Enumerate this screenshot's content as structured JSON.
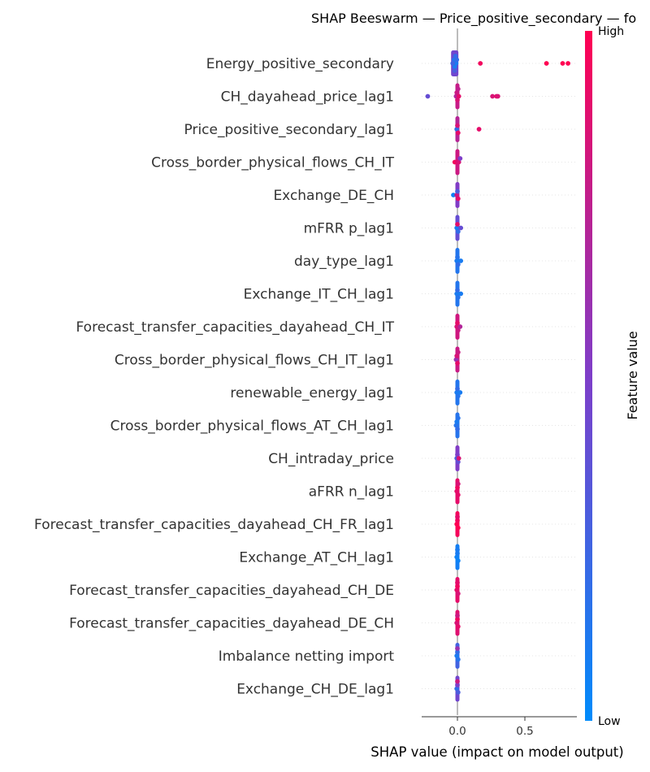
{
  "chart_data": {
    "type": "scatter",
    "title": "SHAP Beeswarm — Price_positive_secondary — fo",
    "xlabel": "SHAP value (impact on model output)",
    "xticks": [
      0.0,
      0.5
    ],
    "xtick_labels": [
      "0.0",
      "0.5"
    ],
    "xlim": [
      -0.27,
      0.88
    ],
    "colorbar": {
      "label": "Feature value",
      "high": "High",
      "low": "Low",
      "low_color": "#008bfb",
      "high_color": "#ff0052"
    },
    "features": [
      {
        "name": "Energy_positive_secondary",
        "points": [
          {
            "x": -0.03,
            "c": 0.1
          },
          {
            "x": -0.025,
            "c": 0.15
          },
          {
            "x": -0.02,
            "c": 0.1
          },
          {
            "x": -0.015,
            "c": 0.2
          },
          {
            "x": -0.01,
            "c": 0.1
          },
          {
            "x": -0.035,
            "c": 0.25
          },
          {
            "x": -0.02,
            "c": 0.3
          },
          {
            "x": -0.005,
            "c": 0.2
          },
          {
            "x": 0.17,
            "c": 0.95
          },
          {
            "x": 0.66,
            "c": 1.0
          },
          {
            "x": 0.78,
            "c": 1.0
          },
          {
            "x": 0.82,
            "c": 1.0
          }
        ]
      },
      {
        "name": "CH_dayahead_price_lag1",
        "points": [
          {
            "x": -0.22,
            "c": 0.4
          },
          {
            "x": -0.01,
            "c": 0.7
          },
          {
            "x": -0.005,
            "c": 0.8
          },
          {
            "x": 0.0,
            "c": 0.85
          },
          {
            "x": 0.005,
            "c": 0.75
          },
          {
            "x": 0.01,
            "c": 0.9
          },
          {
            "x": 0.26,
            "c": 0.85
          },
          {
            "x": 0.29,
            "c": 0.9
          },
          {
            "x": 0.3,
            "c": 0.85
          }
        ]
      },
      {
        "name": "Price_positive_secondary_lag1",
        "points": [
          {
            "x": -0.005,
            "c": 0.2
          },
          {
            "x": 0.0,
            "c": 0.85
          },
          {
            "x": 0.005,
            "c": 0.9
          },
          {
            "x": 0.16,
            "c": 0.9
          }
        ]
      },
      {
        "name": "Cross_border_physical_flows_CH_IT",
        "points": [
          {
            "x": -0.02,
            "c": 0.95
          },
          {
            "x": 0.0,
            "c": 0.9
          },
          {
            "x": 0.01,
            "c": 0.85
          },
          {
            "x": 0.02,
            "c": 0.5
          }
        ]
      },
      {
        "name": "Exchange_DE_CH",
        "points": [
          {
            "x": -0.03,
            "c": 0.05
          },
          {
            "x": -0.005,
            "c": 0.8
          },
          {
            "x": 0.0,
            "c": 0.3
          },
          {
            "x": 0.005,
            "c": 0.9
          }
        ]
      },
      {
        "name": "mFRR p_lag1",
        "points": [
          {
            "x": -0.005,
            "c": 0.1
          },
          {
            "x": 0.0,
            "c": 0.9
          },
          {
            "x": 0.005,
            "c": 0.2
          },
          {
            "x": 0.025,
            "c": 0.4
          }
        ]
      },
      {
        "name": "day_type_lag1",
        "points": [
          {
            "x": -0.005,
            "c": 0.1
          },
          {
            "x": 0.0,
            "c": 0.15
          },
          {
            "x": 0.005,
            "c": 0.2
          },
          {
            "x": 0.025,
            "c": 0.1
          }
        ]
      },
      {
        "name": "Exchange_IT_CH_lag1",
        "points": [
          {
            "x": -0.005,
            "c": 0.1
          },
          {
            "x": 0.0,
            "c": 0.2
          },
          {
            "x": 0.005,
            "c": 0.15
          },
          {
            "x": 0.025,
            "c": 0.1
          }
        ]
      },
      {
        "name": "Forecast_transfer_capacities_dayahead_CH_IT",
        "points": [
          {
            "x": -0.005,
            "c": 0.85
          },
          {
            "x": 0.0,
            "c": 0.9
          },
          {
            "x": 0.005,
            "c": 0.8
          },
          {
            "x": 0.02,
            "c": 0.7
          }
        ]
      },
      {
        "name": "Cross_border_physical_flows_CH_IT_lag1",
        "points": [
          {
            "x": -0.01,
            "c": 0.6
          },
          {
            "x": -0.005,
            "c": 0.85
          },
          {
            "x": 0.0,
            "c": 0.9
          },
          {
            "x": 0.005,
            "c": 0.8
          }
        ]
      },
      {
        "name": "renewable_energy_lag1",
        "points": [
          {
            "x": -0.005,
            "c": 0.1
          },
          {
            "x": 0.0,
            "c": 0.2
          },
          {
            "x": 0.005,
            "c": 0.15
          },
          {
            "x": 0.02,
            "c": 0.1
          }
        ]
      },
      {
        "name": "Cross_border_physical_flows_AT_CH_lag1",
        "points": [
          {
            "x": -0.01,
            "c": 0.15
          },
          {
            "x": -0.005,
            "c": 0.1
          },
          {
            "x": 0.0,
            "c": 0.2
          },
          {
            "x": 0.005,
            "c": 0.15
          }
        ]
      },
      {
        "name": "CH_intraday_price",
        "points": [
          {
            "x": -0.005,
            "c": 0.3
          },
          {
            "x": 0.0,
            "c": 0.5
          },
          {
            "x": 0.005,
            "c": 0.4
          },
          {
            "x": 0.01,
            "c": 0.85
          }
        ]
      },
      {
        "name": "aFRR n_lag1",
        "points": [
          {
            "x": -0.005,
            "c": 0.9
          },
          {
            "x": 0.0,
            "c": 0.95
          },
          {
            "x": 0.005,
            "c": 0.9
          },
          {
            "x": 0.005,
            "c": 0.85
          }
        ]
      },
      {
        "name": "Forecast_transfer_capacities_dayahead_CH_FR_lag1",
        "points": [
          {
            "x": -0.005,
            "c": 1.0
          },
          {
            "x": 0.0,
            "c": 0.95
          },
          {
            "x": 0.005,
            "c": 1.0
          },
          {
            "x": 0.0,
            "c": 0.9
          }
        ]
      },
      {
        "name": "Exchange_AT_CH_lag1",
        "points": [
          {
            "x": -0.005,
            "c": 0.05
          },
          {
            "x": 0.0,
            "c": 0.1
          },
          {
            "x": 0.005,
            "c": 0.05
          },
          {
            "x": 0.0,
            "c": 0.1
          }
        ]
      },
      {
        "name": "Forecast_transfer_capacities_dayahead_CH_DE",
        "points": [
          {
            "x": -0.005,
            "c": 0.9
          },
          {
            "x": 0.0,
            "c": 0.95
          },
          {
            "x": 0.005,
            "c": 0.85
          },
          {
            "x": 0.0,
            "c": 0.9
          }
        ]
      },
      {
        "name": "Forecast_transfer_capacities_dayahead_DE_CH",
        "points": [
          {
            "x": -0.005,
            "c": 0.85
          },
          {
            "x": 0.0,
            "c": 0.95
          },
          {
            "x": 0.005,
            "c": 0.9
          },
          {
            "x": 0.0,
            "c": 0.8
          }
        ]
      },
      {
        "name": "Imbalance netting import",
        "points": [
          {
            "x": -0.005,
            "c": 0.1
          },
          {
            "x": 0.0,
            "c": 0.2
          },
          {
            "x": 0.005,
            "c": 0.15
          },
          {
            "x": 0.0,
            "c": 0.6
          }
        ]
      },
      {
        "name": "Exchange_CH_DE_lag1",
        "points": [
          {
            "x": -0.005,
            "c": 0.2
          },
          {
            "x": 0.0,
            "c": 0.5
          },
          {
            "x": 0.005,
            "c": 0.3
          },
          {
            "x": 0.0,
            "c": 0.8
          }
        ]
      }
    ]
  }
}
